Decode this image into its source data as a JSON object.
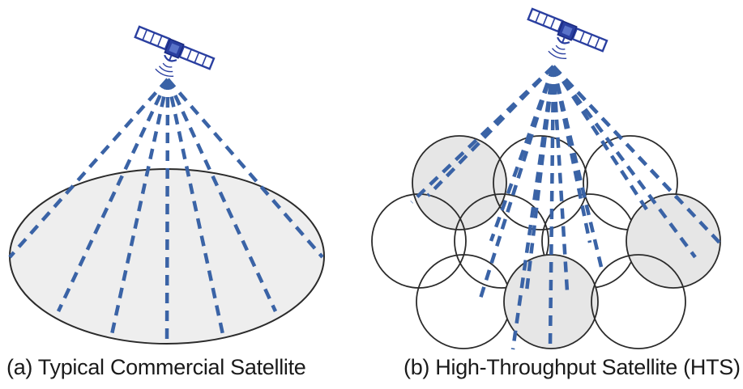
{
  "captions": {
    "a": "(a) Typical Commercial Satellite",
    "b": "(b) High-Throughput Satellite (HTS)"
  },
  "colors": {
    "beam": "#3a63a6",
    "satellite": "#2a3fa0",
    "coverage_fill": "#eeeeee",
    "spot_fill": "#e6e6e6",
    "outline": "#2b2b2b"
  },
  "panels": {
    "a": {
      "type": "single-wide-beam",
      "beam_count": 7
    },
    "b": {
      "type": "multi-spot-beam",
      "spot_beam_count": 10,
      "shaded_spots": 3,
      "beam_count": 14
    }
  }
}
